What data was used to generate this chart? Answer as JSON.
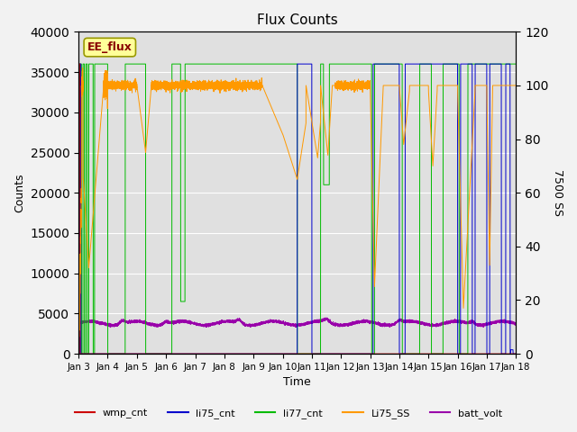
{
  "title": "Flux Counts",
  "xlabel": "Time",
  "ylabel_left": "Counts",
  "ylabel_right": "7500 SS",
  "annotation": "EE_flux",
  "ylim_left": [
    0,
    40000
  ],
  "ylim_right": [
    0,
    120
  ],
  "yticks_left": [
    0,
    5000,
    10000,
    15000,
    20000,
    25000,
    30000,
    35000,
    40000
  ],
  "yticks_right": [
    0,
    20,
    40,
    60,
    80,
    100,
    120
  ],
  "xtick_labels": [
    "Jan 3",
    "Jan 4",
    "Jan 5",
    "Jan 6",
    "Jan 7",
    "Jan 8",
    "Jan 9",
    "Jan 10",
    "Jan 11",
    "Jan 12",
    "Jan 13",
    "Jan 14",
    "Jan 15",
    "Jan 16",
    "Jan 17",
    "Jan 18"
  ],
  "colors": {
    "wmp_cnt": "#cc0000",
    "li75_cnt": "#0000cc",
    "li77_cnt": "#00bb00",
    "Li75_SS": "#ff9900",
    "batt_volt": "#9900aa"
  },
  "fig_bg": "#f2f2f2",
  "plot_bg": "#e0e0e0",
  "grid_color": "#ffffff"
}
